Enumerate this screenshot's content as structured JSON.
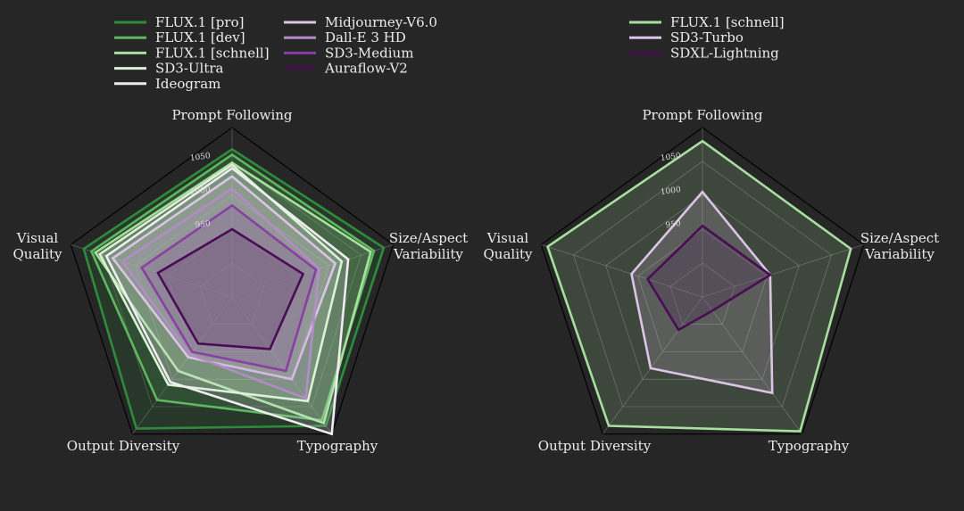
{
  "chart_data": [
    {
      "type": "radar",
      "axes": [
        "Prompt Following",
        "Size/Aspect Variability",
        "Typography",
        "Output Diversity",
        "Visual Quality"
      ],
      "axis_label_lines": [
        [
          "Prompt Following"
        ],
        [
          "Size/Aspect",
          "Variability"
        ],
        [
          "Typography"
        ],
        [
          "Output Diversity"
        ],
        [
          "Visual",
          "Quality"
        ]
      ],
      "ticks": [
        950,
        1000,
        1050
      ],
      "tick_labels": [
        "950",
        "1000",
        "1050"
      ],
      "rlim": [
        850,
        1100
      ],
      "grid": true,
      "legend_placement": "top",
      "series": [
        {
          "name": "FLUX.1 [pro]",
          "color": "#2e8b3c",
          "values": [
            1068,
            1085,
            1085,
            1090,
            1080
          ]
        },
        {
          "name": "FLUX.1 [dev]",
          "color": "#5db85e",
          "values": [
            1060,
            1070,
            1075,
            1038,
            1068
          ]
        },
        {
          "name": "FLUX.1 [schnell]",
          "color": "#a8dea0",
          "values": [
            1048,
            1065,
            1080,
            985,
            1062
          ]
        },
        {
          "name": "SD3-Ultra",
          "color": "#daf1d4",
          "values": [
            1045,
            1020,
            1040,
            1010,
            1055
          ]
        },
        {
          "name": "Ideogram",
          "color": "#f1ecf4",
          "values": [
            1040,
            1030,
            1100,
            1005,
            1045
          ]
        },
        {
          "name": "Midjourney-V6.0",
          "color": "#dcc4e6",
          "values": [
            1028,
            1010,
            1000,
            960,
            1035
          ]
        },
        {
          "name": "Dall-E 3 HD",
          "color": "#b48cc8",
          "values": [
            1010,
            985,
            1035,
            955,
            1020
          ]
        },
        {
          "name": "SD3-Medium",
          "color": "#8a3fa3",
          "values": [
            985,
            980,
            985,
            950,
            990
          ]
        },
        {
          "name": "Auraflow-V2",
          "color": "#4a0c55",
          "values": [
            950,
            960,
            945,
            935,
            965
          ]
        }
      ]
    },
    {
      "type": "radar",
      "axes": [
        "Prompt Following",
        "Size/Aspect Variability",
        "Typography",
        "Output Diversity",
        "Visual Quality"
      ],
      "axis_label_lines": [
        [
          "Prompt Following"
        ],
        [
          "Size/Aspect",
          "Variability"
        ],
        [
          "Typography"
        ],
        [
          "Output Diversity"
        ],
        [
          "Visual",
          "Quality"
        ]
      ],
      "ticks": [
        950,
        1000,
        1050
      ],
      "tick_labels": [
        "950",
        "1000",
        "1050"
      ],
      "rlim": [
        850,
        1100
      ],
      "grid": true,
      "legend_placement": "top",
      "series": [
        {
          "name": "FLUX.1 [schnell]",
          "color": "#a8dea0",
          "values": [
            1080,
            1080,
            1095,
            1085,
            1090
          ]
        },
        {
          "name": "SD3-Turbo",
          "color": "#dcc4e6",
          "values": [
            1005,
            955,
            1025,
            980,
            960
          ]
        },
        {
          "name": "SDXL-Lightning",
          "color": "#4a0c55",
          "values": [
            955,
            955,
            875,
            910,
            935
          ]
        }
      ]
    }
  ]
}
